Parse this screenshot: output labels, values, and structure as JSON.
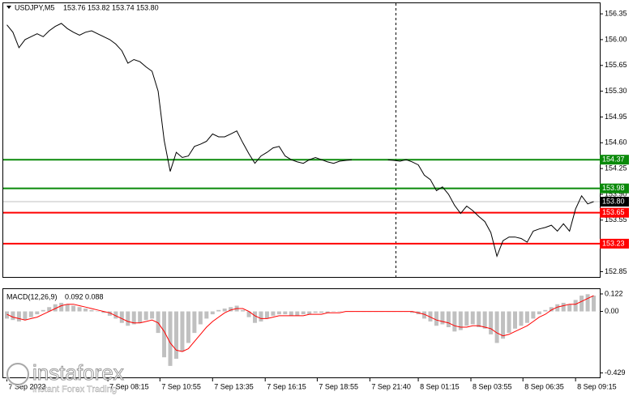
{
  "chart_data": [
    {
      "type": "line",
      "title": "USDJPY,M5",
      "subtitle": "153.76 153.82 153.74 153.80",
      "color": "#000000",
      "values": [
        156.2,
        156.1,
        155.89,
        156.0,
        156.04,
        156.08,
        156.04,
        156.12,
        156.18,
        156.22,
        156.15,
        156.1,
        156.06,
        156.1,
        156.12,
        156.08,
        156.04,
        156.0,
        155.94,
        155.85,
        155.68,
        155.73,
        155.7,
        155.63,
        155.57,
        155.3,
        154.63,
        154.21,
        154.47,
        154.4,
        154.42,
        154.55,
        154.58,
        154.62,
        154.72,
        154.68,
        154.68,
        154.72,
        154.76,
        154.6,
        154.45,
        154.32,
        154.42,
        154.47,
        154.53,
        154.55,
        154.42,
        154.37,
        154.34,
        154.32,
        154.37,
        154.4,
        154.37,
        154.34,
        154.32,
        154.35,
        154.36,
        154.37,
        null,
        null,
        null,
        null,
        null,
        154.37,
        154.36,
        154.35,
        154.37,
        154.34,
        154.3,
        154.16,
        154.1,
        153.95,
        154.0,
        153.9,
        153.75,
        153.64,
        153.74,
        153.68,
        153.6,
        153.53,
        153.38,
        153.06,
        153.27,
        153.32,
        153.32,
        153.3,
        153.25,
        153.4,
        153.43,
        153.45,
        153.48,
        153.4,
        153.5,
        153.4,
        153.7,
        153.88,
        153.77,
        153.8
      ],
      "xlim": [
        -0.6,
        98
      ],
      "xticks": [
        {
          "value": 0,
          "label": "7 Sep 2023"
        },
        {
          "value": 16.7,
          "label": "7 Sep 08:15"
        },
        {
          "value": 25.3,
          "label": "7 Sep 10:55"
        },
        {
          "value": 34,
          "label": "7 Sep 13:35"
        },
        {
          "value": 42.7,
          "label": "7 Sep 16:15"
        },
        {
          "value": 51.3,
          "label": "7 Sep 18:55"
        },
        {
          "value": 60,
          "label": "7 Sep 21:40"
        },
        {
          "value": 68,
          "label": "8 Sep 01:15"
        },
        {
          "value": 76.7,
          "label": "8 Sep 03:55"
        },
        {
          "value": 85.3,
          "label": "8 Sep 06:35"
        },
        {
          "value": 94,
          "label": "8 Sep 09:15"
        }
      ],
      "ylim": [
        152.8,
        156.45
      ],
      "yticks": [
        156.35,
        {
          "value": 156,
          "label": "156.00"
        },
        155.65,
        {
          "value": 155.3,
          "label": "155.30"
        },
        154.95,
        {
          "value": 154.6,
          "label": "154.60"
        },
        154.25,
        {
          "value": 153.9,
          "label": "153.90"
        },
        153.55,
        {
          "value": 153.2,
          "label": "153.20"
        },
        152.85
      ],
      "levels": [
        {
          "value": 154.37,
          "color": "#0a8a0a"
        },
        {
          "value": 153.98,
          "color": "#0a8a0a"
        },
        {
          "value": 153.65,
          "color": "#ff0000"
        },
        {
          "value": 153.23,
          "color": "#ff0000"
        }
      ],
      "current_price": {
        "value": 153.8,
        "label": "153.80"
      }
    },
    {
      "type": "macd",
      "title": "MACD(12,26,9)",
      "subtitle": "0.092 0.088",
      "series": [
        {
          "color": "#c0c0c0",
          "values": [
            -0.05,
            -0.06,
            -0.07,
            -0.06,
            -0.04,
            -0.02,
            0.01,
            0.03,
            0.05,
            0.06,
            0.05,
            0.04,
            0.03,
            0.02,
            0.01,
            0,
            -0.01,
            -0.03,
            -0.05,
            -0.08,
            -0.1,
            -0.09,
            -0.08,
            -0.06,
            -0.05,
            -0.15,
            -0.32,
            -0.38,
            -0.33,
            -0.28,
            -0.22,
            -0.15,
            -0.09,
            -0.05,
            -0.02,
            0.01,
            0.02,
            0.03,
            0.04,
            0.01,
            -0.04,
            -0.08,
            -0.07,
            -0.05,
            -0.03,
            -0.02,
            -0.02,
            -0.03,
            -0.03,
            -0.02,
            -0.02,
            -0.01,
            -0.01,
            -0.01,
            0,
            0,
            0,
            0,
            0,
            0,
            0,
            0,
            0,
            0,
            0,
            0,
            0,
            -0.01,
            -0.02,
            -0.05,
            -0.07,
            -0.1,
            -0.09,
            -0.11,
            -0.14,
            -0.13,
            -0.1,
            -0.09,
            -0.11,
            -0.12,
            -0.16,
            -0.22,
            -0.19,
            -0.15,
            -0.12,
            -0.1,
            -0.08,
            -0.05,
            -0.02,
            0.01,
            0.03,
            0.05,
            0.06,
            0.05,
            0.08,
            0.11,
            0.12,
            0.11
          ]
        },
        {
          "color": "#ff0000",
          "values": [
            -0.02,
            -0.04,
            -0.05,
            -0.06,
            -0.05,
            -0.04,
            -0.02,
            0,
            0.02,
            0.04,
            0.05,
            0.05,
            0.04,
            0.03,
            0.02,
            0.01,
            0,
            -0.01,
            -0.03,
            -0.05,
            -0.07,
            -0.08,
            -0.08,
            -0.07,
            -0.06,
            -0.08,
            -0.14,
            -0.22,
            -0.27,
            -0.28,
            -0.26,
            -0.21,
            -0.16,
            -0.11,
            -0.07,
            -0.04,
            -0.01,
            0.01,
            0.02,
            0.02,
            0,
            -0.03,
            -0.05,
            -0.05,
            -0.04,
            -0.03,
            -0.03,
            -0.03,
            -0.03,
            -0.03,
            -0.02,
            -0.02,
            -0.02,
            -0.01,
            -0.01,
            -0.01,
            0,
            0,
            0,
            0,
            0,
            0,
            0,
            0,
            0,
            0,
            0,
            0,
            -0.01,
            -0.02,
            -0.04,
            -0.06,
            -0.07,
            -0.08,
            -0.1,
            -0.11,
            -0.11,
            -0.1,
            -0.1,
            -0.11,
            -0.12,
            -0.15,
            -0.17,
            -0.16,
            -0.14,
            -0.12,
            -0.1,
            -0.07,
            -0.04,
            -0.02,
            0.01,
            0.03,
            0.04,
            0.05,
            0.05,
            0.07,
            0.09,
            0.11
          ]
        }
      ],
      "ylim": [
        -0.46,
        0.15
      ],
      "yticks": [
        0.122,
        {
          "value": 0,
          "label": "0.00"
        },
        -0.429
      ]
    }
  ],
  "watermark": {
    "brand": "instaforex",
    "tagline": "Instant Forex Trading"
  }
}
